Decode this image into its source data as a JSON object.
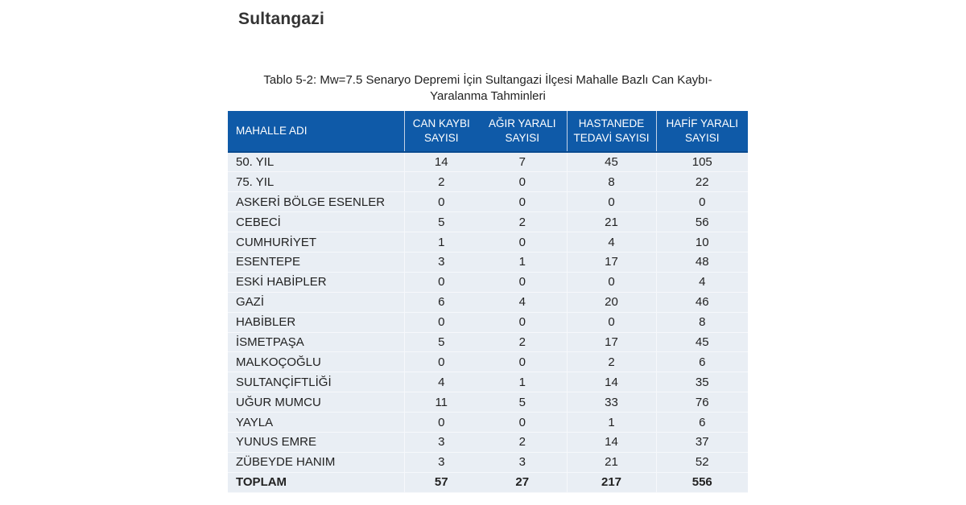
{
  "page": {
    "title": "Sultangazi"
  },
  "table": {
    "caption_line1": "Tablo 5-2: Mw=7.5 Senaryo Depremi İçin Sultangazi İlçesi Mahalle Bazlı Can Kaybı-",
    "caption_line2": "Yaralanma Tahminleri",
    "headers": [
      {
        "line1": "MAHALLE ADI",
        "line2": ""
      },
      {
        "line1": "CAN KAYBI",
        "line2": "SAYISI"
      },
      {
        "line1": "AĞIR YARALI",
        "line2": "SAYISI"
      },
      {
        "line1": "HASTANEDE",
        "line2": "TEDAVİ SAYISI"
      },
      {
        "line1": "HAFİF YARALI",
        "line2": "SAYISI"
      }
    ],
    "rows": [
      [
        "50. YIL",
        "14",
        "7",
        "45",
        "105"
      ],
      [
        "75. YIL",
        "2",
        "0",
        "8",
        "22"
      ],
      [
        "ASKERİ BÖLGE ESENLER",
        "0",
        "0",
        "0",
        "0"
      ],
      [
        "CEBECİ",
        "5",
        "2",
        "21",
        "56"
      ],
      [
        "CUMHURİYET",
        "1",
        "0",
        "4",
        "10"
      ],
      [
        "ESENTEPE",
        "3",
        "1",
        "17",
        "48"
      ],
      [
        "ESKİ HABİPLER",
        "0",
        "0",
        "0",
        "4"
      ],
      [
        "GAZİ",
        "6",
        "4",
        "20",
        "46"
      ],
      [
        "HABİBLER",
        "0",
        "0",
        "0",
        "8"
      ],
      [
        "İSMETPAŞA",
        "5",
        "2",
        "17",
        "45"
      ],
      [
        "MALKOÇOĞLU",
        "0",
        "0",
        "2",
        "6"
      ],
      [
        "SULTANÇİFTLİĞİ",
        "4",
        "1",
        "14",
        "35"
      ],
      [
        "UĞUR MUMCU",
        "11",
        "5",
        "33",
        "76"
      ],
      [
        "YAYLA",
        "0",
        "0",
        "1",
        "6"
      ],
      [
        "YUNUS EMRE",
        "3",
        "2",
        "14",
        "37"
      ],
      [
        "ZÜBEYDE HANIM",
        "3",
        "3",
        "21",
        "52"
      ]
    ],
    "total": [
      "TOPLAM",
      "57",
      "27",
      "217",
      "556"
    ]
  },
  "colors": {
    "header_bg": "#0f5aa8",
    "row_bg": "#e9eef4",
    "text": "#222222"
  }
}
